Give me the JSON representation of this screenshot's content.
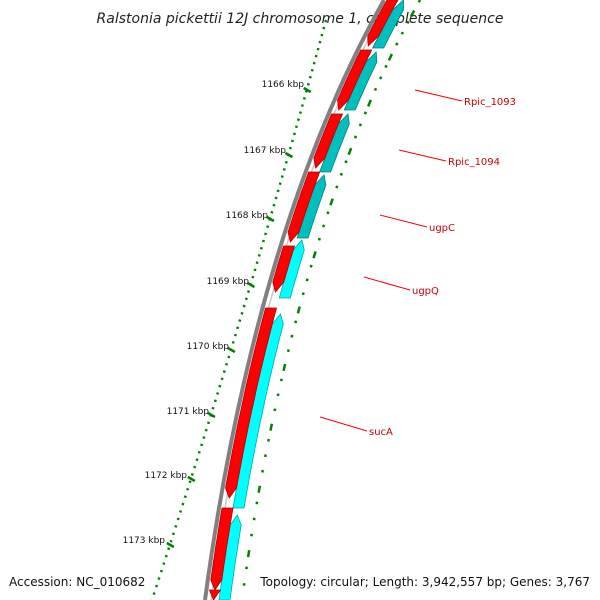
{
  "title": "Ralstonia pickettii 12J chromosome 1, complete sequence",
  "footer": {
    "accession": "Accession: NC_010682",
    "stats": "Topology: circular; Length: 3,942,557 bp; Genes: 3,767"
  },
  "colors": {
    "backbone": "#808080",
    "gene_forward": "#ff0000",
    "gene_reverse": "#00ffff",
    "gene_reverse_dark": "#00bfbf",
    "tick": "#008000",
    "label_line": "#ff0000",
    "label_text": "#cc0000"
  },
  "scale_ticks": [
    {
      "label": "1166 kbp"
    },
    {
      "label": "1167 kbp"
    },
    {
      "label": "1168 kbp"
    },
    {
      "label": "1169 kbp"
    },
    {
      "label": "1170 kbp"
    },
    {
      "label": "1171 kbp"
    },
    {
      "label": "1172 kbp"
    },
    {
      "label": "1173 kbp"
    }
  ],
  "gene_labels": [
    {
      "name": "Rpic_1093"
    },
    {
      "name": "Rpic_1094"
    },
    {
      "name": "ugpC"
    },
    {
      "name": "ugpQ"
    },
    {
      "name": "sucA"
    }
  ]
}
